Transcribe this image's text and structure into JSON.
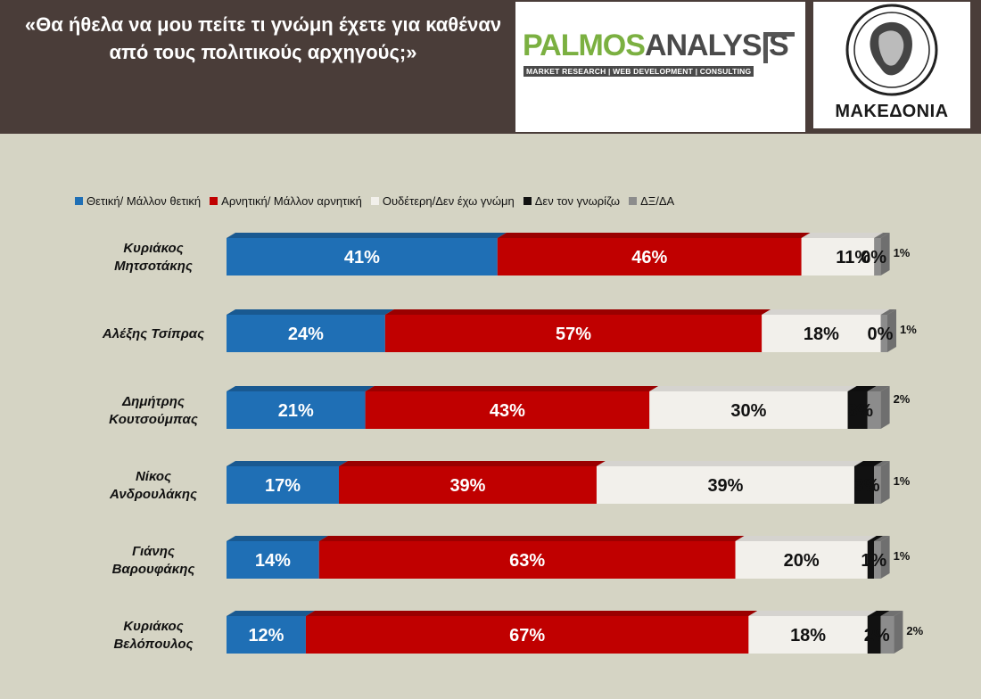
{
  "header": {
    "question": "«Θα ήθελα να μου πείτε τι γνώμη έχετε για καθέναν από τους πολιτικούς αρχηγούς;»",
    "pollster_name_a": "PALMOS",
    "pollster_name_b": "ANALYSIS",
    "pollster_tagline": "MARKET RESEARCH | WEB DEVELOPMENT | CONSULTING",
    "newspaper": "ΜΑΚΕΔΟΝΙΑ"
  },
  "colors": {
    "positive": "#1f6fb5",
    "negative": "#c00000",
    "neutral": "#f2f0eb",
    "unknown": "#111111",
    "dk_na": "#8c8c8c"
  },
  "chart_data": {
    "type": "bar",
    "orientation": "horizontal",
    "stacked": true,
    "categories": [
      [
        "Κυριάκος",
        "Μητσοτάκης"
      ],
      [
        "Αλέξης Τσίπρας"
      ],
      [
        "Δημήτρης",
        "Κουτσούμπας"
      ],
      [
        "Νίκος",
        "Ανδρουλάκης"
      ],
      [
        "Γιάνης",
        "Βαρουφάκης"
      ],
      [
        "Κυριάκος",
        "Βελόπουλος"
      ]
    ],
    "series": [
      {
        "name": "Θετική/ Μάλλον θετική",
        "values": [
          41,
          24,
          21,
          17,
          14,
          12
        ]
      },
      {
        "name": "Αρνητική/ Μάλλον αρνητική",
        "values": [
          46,
          57,
          43,
          39,
          63,
          67
        ]
      },
      {
        "name": "Ουδέτερη/Δεν έχω γνώμη",
        "values": [
          11,
          18,
          30,
          39,
          20,
          18
        ]
      },
      {
        "name": "Δεν τον γνωρίζω",
        "values": [
          0,
          0,
          3,
          3,
          1,
          2
        ]
      },
      {
        "name": "ΔΞ/ΔΑ",
        "values": [
          1,
          1,
          2,
          1,
          1,
          2
        ]
      }
    ],
    "labels": [
      [
        "41%",
        "46%",
        "11%",
        "0%",
        "1%"
      ],
      [
        "24%",
        "57%",
        "18%",
        "0%",
        "1%"
      ],
      [
        "21%",
        "43%",
        "30%",
        "3%",
        "2%"
      ],
      [
        "17%",
        "39%",
        "39%",
        "3%",
        "1%"
      ],
      [
        "14%",
        "63%",
        "20%",
        "1%",
        "1%"
      ],
      [
        "12%",
        "67%",
        "18%",
        "2%",
        "2%"
      ]
    ],
    "xlim": [
      0,
      100
    ],
    "legend_position": "top",
    "grid": false
  }
}
